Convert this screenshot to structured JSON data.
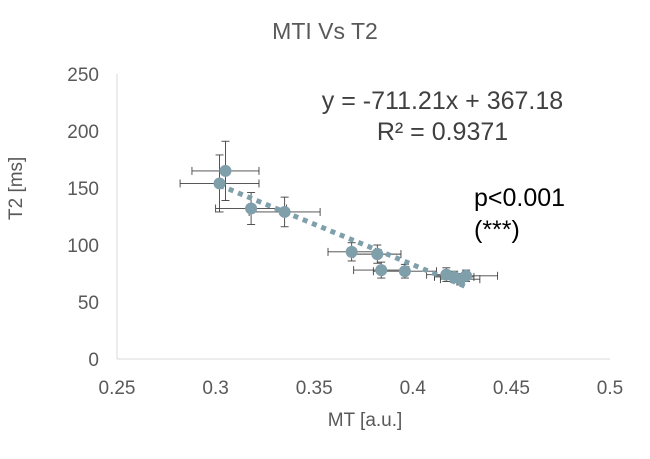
{
  "chart_data": {
    "type": "scatter",
    "title": "MTI Vs T2",
    "xlabel": "MT [a.u.]",
    "ylabel": "T2 [ms]",
    "xlim": [
      0.25,
      0.5
    ],
    "ylim": [
      0,
      250
    ],
    "x_ticks": [
      "0.25",
      "0.3",
      "0.35",
      "0.4",
      "0.45",
      "0.5"
    ],
    "y_ticks": [
      "0",
      "50",
      "100",
      "150",
      "200",
      "250"
    ],
    "points": [
      {
        "x": 0.305,
        "y": 165,
        "xerr": 0.017,
        "yerr": 26
      },
      {
        "x": 0.302,
        "y": 154,
        "xerr": 0.02,
        "yerr": 25
      },
      {
        "x": 0.318,
        "y": 132,
        "xerr": 0.018,
        "yerr": 14
      },
      {
        "x": 0.335,
        "y": 129,
        "xerr": 0.018,
        "yerr": 13
      },
      {
        "x": 0.369,
        "y": 94,
        "xerr": 0.012,
        "yerr": 8
      },
      {
        "x": 0.382,
        "y": 92,
        "xerr": 0.012,
        "yerr": 8
      },
      {
        "x": 0.384,
        "y": 78,
        "xerr": 0.014,
        "yerr": 7
      },
      {
        "x": 0.396,
        "y": 77,
        "xerr": 0.016,
        "yerr": 6
      },
      {
        "x": 0.417,
        "y": 74,
        "xerr": 0.01,
        "yerr": 6
      },
      {
        "x": 0.421,
        "y": 72,
        "xerr": 0.01,
        "yerr": 5
      },
      {
        "x": 0.424,
        "y": 70,
        "xerr": 0.01,
        "yerr": 5
      },
      {
        "x": 0.427,
        "y": 73,
        "xerr": 0.016,
        "yerr": 5
      }
    ],
    "trendline": {
      "type": "linear",
      "slope": -711.21,
      "intercept": 367.18,
      "x_from": 0.302,
      "x_to": 0.427
    },
    "equation": "y = -711.21x + 367.18",
    "r_squared": "R² = 0.9371",
    "annotation_p": "p<0.001",
    "annotation_stars": "(***)",
    "grid": false,
    "legend": "none",
    "colors": {
      "marker": "#7f9fab",
      "trendline": "#7f9fab",
      "error_bar": "#404040",
      "axis": "#d9d9d9",
      "text": "#595959"
    }
  }
}
